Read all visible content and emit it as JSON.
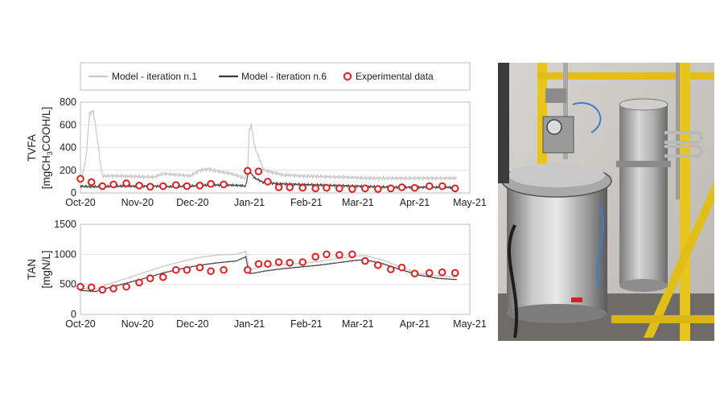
{
  "legend": {
    "items": [
      {
        "label": "Model - iteration n.1",
        "color": "#c8c8c8",
        "kind": "line"
      },
      {
        "label": "Model - iteration n.6",
        "color": "#3a3a3a",
        "kind": "line"
      },
      {
        "label": "Experimental data",
        "color": "#e02020",
        "kind": "marker"
      }
    ]
  },
  "photo": {
    "description_icon": "photo-anaerobic-digester-reactor"
  },
  "chart_data": [
    {
      "type": "line",
      "ylabel_line1": "TVFA",
      "ylabel_line2": "[mgCH",
      "ylabel_sub": "3",
      "ylabel_line2_end": "COOH/L]",
      "ylim": [
        0,
        800
      ],
      "yticks": [
        0,
        200,
        400,
        600,
        800
      ],
      "xlim_days": [
        0,
        212
      ],
      "xtick_labels": [
        "Oct-20",
        "Nov-20",
        "Dec-20",
        "Jan-21",
        "Feb-21",
        "Mar-21",
        "Apr-21",
        "May-21"
      ],
      "xtick_days": [
        0,
        31,
        61,
        92,
        123,
        151,
        182,
        212
      ],
      "series": [
        {
          "name": "Model - iteration n.1",
          "color": "#c8c8c8",
          "x": [
            0,
            3,
            5,
            7,
            9,
            11,
            12,
            20,
            30,
            40,
            45,
            60,
            65,
            70,
            75,
            82,
            86,
            88,
            89,
            90,
            91,
            92,
            93,
            95,
            100,
            110,
            120,
            130,
            140,
            150,
            160,
            170,
            180,
            190,
            200,
            205
          ],
          "y": [
            80,
            300,
            700,
            720,
            500,
            250,
            150,
            150,
            145,
            140,
            170,
            150,
            200,
            210,
            190,
            170,
            150,
            140,
            130,
            140,
            200,
            550,
            600,
            400,
            200,
            160,
            150,
            145,
            140,
            135,
            130,
            130,
            130,
            130,
            130,
            130
          ],
          "band": 35
        },
        {
          "name": "Model - iteration n.6",
          "color": "#3a3a3a",
          "x": [
            0,
            5,
            10,
            20,
            30,
            40,
            50,
            60,
            70,
            80,
            88,
            90,
            91,
            92,
            93,
            95,
            100,
            110,
            120,
            130,
            140,
            150,
            160,
            170,
            180,
            190,
            200,
            205
          ],
          "y": [
            60,
            55,
            55,
            60,
            60,
            60,
            55,
            60,
            70,
            70,
            65,
            60,
            150,
            200,
            170,
            130,
            90,
            80,
            75,
            70,
            65,
            60,
            55,
            50,
            50,
            50,
            50,
            45
          ],
          "band": 25
        }
      ],
      "experimental": {
        "name": "Experimental data",
        "x": [
          0,
          6,
          12,
          18,
          25,
          32,
          38,
          45,
          52,
          58,
          65,
          71,
          78,
          91,
          97,
          102,
          108,
          114,
          121,
          128,
          134,
          141,
          148,
          155,
          162,
          169,
          175,
          182,
          190,
          197,
          204
        ],
        "y": [
          125,
          95,
          60,
          75,
          85,
          65,
          55,
          60,
          70,
          60,
          65,
          80,
          75,
          195,
          190,
          100,
          50,
          50,
          45,
          40,
          45,
          40,
          35,
          40,
          35,
          40,
          50,
          45,
          60,
          60,
          40
        ]
      }
    },
    {
      "type": "line",
      "ylabel_line1": "TAN",
      "ylabel_line2": "[mgN/L]",
      "ylim": [
        0,
        1500
      ],
      "yticks": [
        0,
        500,
        1000,
        1500
      ],
      "xlim_days": [
        0,
        212
      ],
      "xtick_labels": [
        "Oct-20",
        "Nov-20",
        "Dec-20",
        "Jan-21",
        "Feb-21",
        "Mar-21",
        "Apr-21",
        "May-21"
      ],
      "xtick_days": [
        0,
        31,
        61,
        92,
        123,
        151,
        182,
        212
      ],
      "series": [
        {
          "name": "Model - iteration n.1",
          "color": "#c8c8c8",
          "x": [
            0,
            8,
            15,
            25,
            35,
            45,
            55,
            65,
            75,
            85,
            90,
            91,
            92,
            95,
            100,
            110,
            120,
            130,
            140,
            150,
            155,
            165,
            175,
            185,
            195,
            205
          ],
          "y": [
            430,
            420,
            500,
            600,
            700,
            800,
            880,
            950,
            990,
            1000,
            1050,
            900,
            760,
            760,
            800,
            830,
            850,
            880,
            930,
            970,
            980,
            900,
            780,
            680,
            640,
            620
          ],
          "band": 12
        },
        {
          "name": "Model - iteration n.6",
          "color": "#3a3a3a",
          "x": [
            0,
            8,
            15,
            25,
            35,
            45,
            55,
            65,
            75,
            85,
            90,
            91,
            92,
            95,
            100,
            110,
            120,
            130,
            140,
            150,
            155,
            165,
            175,
            185,
            195,
            205
          ],
          "y": [
            400,
            380,
            440,
            520,
            600,
            690,
            760,
            820,
            860,
            890,
            960,
            800,
            680,
            690,
            720,
            760,
            790,
            820,
            860,
            900,
            910,
            840,
            740,
            650,
            600,
            580
          ],
          "band": 12
        }
      ],
      "experimental": {
        "name": "Experimental data",
        "x": [
          0,
          6,
          12,
          18,
          25,
          32,
          38,
          45,
          52,
          58,
          65,
          71,
          78,
          91,
          97,
          102,
          108,
          114,
          121,
          128,
          134,
          141,
          148,
          155,
          162,
          169,
          175,
          182,
          190,
          197,
          204
        ],
        "y": [
          460,
          450,
          410,
          430,
          460,
          530,
          600,
          620,
          740,
          740,
          780,
          720,
          740,
          740,
          840,
          840,
          870,
          860,
          870,
          960,
          1000,
          990,
          1000,
          890,
          820,
          750,
          780,
          680,
          690,
          700,
          690
        ]
      }
    }
  ]
}
